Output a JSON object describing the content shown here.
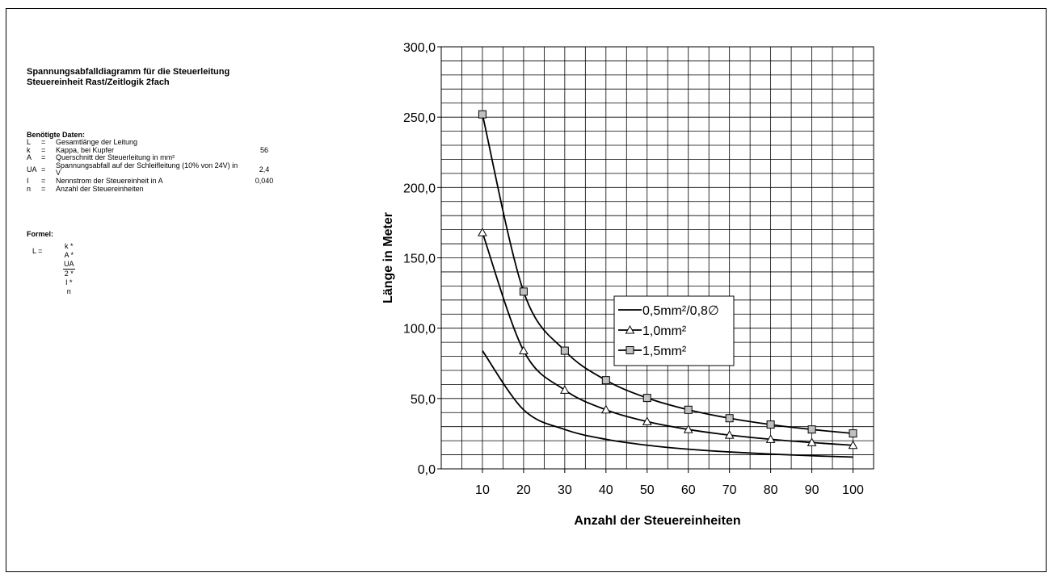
{
  "heading": {
    "line1": "Spannungsabfalldiagramm für die Steuerleitung",
    "line2": "Steuereinheit Rast/Zeitlogik 2fach"
  },
  "data_section": {
    "title": "Benötigte Daten:",
    "rows": [
      {
        "sym": "L",
        "eq": "=",
        "desc": "Gesamtlänge der Leitung",
        "val": ""
      },
      {
        "sym": "k",
        "eq": "=",
        "desc": "Kappa, bei Kupfer",
        "val": "56"
      },
      {
        "sym": "A",
        "eq": "=",
        "desc": "Querschnitt der Steuerleitung in mm²",
        "val": ""
      },
      {
        "sym": "UA",
        "eq": "=",
        "desc": "Spannungsabfall auf der Schleifleitung (10% von 24V) in V",
        "val": "2,4"
      },
      {
        "sym": "I",
        "eq": "=",
        "desc": "Nennstrom der Steuereinheit in A",
        "val": "0,040"
      },
      {
        "sym": "n",
        "eq": "=",
        "desc": "Anzahl der Steuereinheiten",
        "val": ""
      }
    ]
  },
  "formula": {
    "title": "Formel:",
    "lhs": "L    =",
    "numerator": "k * A * UA",
    "denominator": "2 * I * n"
  },
  "chart_data": {
    "type": "line",
    "xlabel": "Anzahl der Steuereinheiten",
    "ylabel": "Länge in Meter",
    "ylim": [
      0,
      300
    ],
    "yticks": [
      0,
      50,
      100,
      150,
      200,
      250,
      300
    ],
    "ytick_labels": [
      "0,0",
      "50,0",
      "100,0",
      "150,0",
      "200,0",
      "250,0",
      "300,0"
    ],
    "xlim": [
      0,
      105
    ],
    "xticks": [
      10,
      20,
      30,
      40,
      50,
      60,
      70,
      80,
      90,
      100
    ],
    "ytick_minor_step": 10,
    "x_minor_step": 5,
    "grid": true,
    "legend": "center-right",
    "series": [
      {
        "name": "0,5mm²/0,8∅",
        "marker": "none",
        "color": "#000000",
        "x": [
          10,
          20,
          30,
          40,
          50,
          60,
          70,
          80,
          90,
          100
        ],
        "values": [
          84,
          42,
          28,
          21,
          16.8,
          14,
          12,
          10.5,
          9.3,
          8.4
        ]
      },
      {
        "name": "1,0mm²",
        "marker": "triangle",
        "color": "#000000",
        "x": [
          10,
          20,
          30,
          40,
          50,
          60,
          70,
          80,
          90,
          100
        ],
        "values": [
          168,
          84,
          56,
          42,
          33.6,
          28,
          24,
          21,
          18.7,
          16.8
        ]
      },
      {
        "name": "1,5mm²",
        "marker": "square",
        "color": "#000000",
        "marker_fill": "#c0c0c0",
        "x": [
          10,
          20,
          30,
          40,
          50,
          60,
          70,
          80,
          90,
          100
        ],
        "values": [
          252,
          126,
          84,
          63,
          50.4,
          42,
          36,
          31.5,
          28,
          25.2
        ]
      }
    ]
  }
}
